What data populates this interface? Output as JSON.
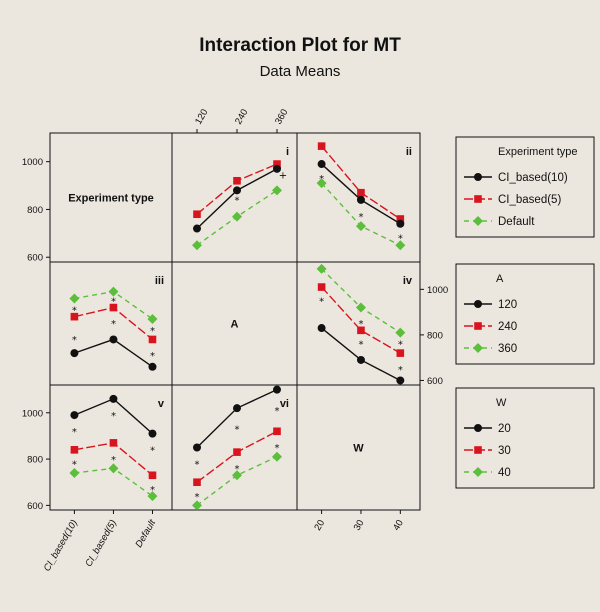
{
  "chart_data": {
    "type": "line",
    "title": "Interaction Plot for MT",
    "subtitle": "Data Means",
    "factors": [
      {
        "name": "Experiment type",
        "levels": [
          "CI_based(10)",
          "CI_based(5)",
          "Default"
        ]
      },
      {
        "name": "A",
        "levels": [
          "120",
          "240",
          "360"
        ]
      },
      {
        "name": "W",
        "levels": [
          "20",
          "30",
          "40"
        ]
      }
    ],
    "ylim": [
      580,
      1120
    ],
    "ytick_values": [
      600,
      800,
      1000
    ],
    "ytick_labels": [
      "600",
      "800",
      "1000"
    ],
    "colors": [
      "#111111",
      "#d9141e",
      "#5cbf3c"
    ],
    "marker_shapes": [
      "circle",
      "square",
      "diamond"
    ],
    "line_styles": [
      "solid",
      "longdash",
      "dash"
    ],
    "panels": [
      {
        "id": "i",
        "row": 0,
        "col": 1,
        "x_factor": "A",
        "trace_factor": "Experiment type",
        "series": [
          {
            "name": "CI_based(10)",
            "values": [
              720,
              880,
              970
            ]
          },
          {
            "name": "CI_based(5)",
            "values": [
              780,
              920,
              990
            ]
          },
          {
            "name": "Default",
            "values": [
              650,
              770,
              880
            ]
          }
        ],
        "stars": [
          [
            1,
            850
          ]
        ],
        "plus": [
          [
            2,
            950
          ]
        ]
      },
      {
        "id": "ii",
        "row": 0,
        "col": 2,
        "x_factor": "W",
        "trace_factor": "Experiment type",
        "series": [
          {
            "name": "CI_based(10)",
            "values": [
              990,
              840,
              740
            ]
          },
          {
            "name": "CI_based(5)",
            "values": [
              1065,
              870,
              760
            ]
          },
          {
            "name": "Default",
            "values": [
              910,
              730,
              650
            ]
          }
        ],
        "stars": [
          [
            0,
            940
          ],
          [
            1,
            780
          ],
          [
            2,
            690
          ]
        ]
      },
      {
        "id": "iii",
        "row": 1,
        "col": 0,
        "x_factor": "Experiment type",
        "trace_factor": "A",
        "series": [
          {
            "name": "120",
            "values": [
              720,
              780,
              660
            ]
          },
          {
            "name": "240",
            "values": [
              880,
              920,
              780
            ]
          },
          {
            "name": "360",
            "values": [
              960,
              990,
              870
            ]
          }
        ],
        "stars": [
          [
            0,
            920
          ],
          [
            0,
            790
          ],
          [
            1,
            960
          ],
          [
            1,
            860
          ],
          [
            2,
            830
          ],
          [
            2,
            720
          ]
        ]
      },
      {
        "id": "iv",
        "row": 1,
        "col": 2,
        "x_factor": "W",
        "trace_factor": "A",
        "series": [
          {
            "name": "120",
            "values": [
              830,
              690,
              600
            ]
          },
          {
            "name": "240",
            "values": [
              1010,
              820,
              720
            ]
          },
          {
            "name": "360",
            "values": [
              1090,
              920,
              810
            ]
          }
        ],
        "stars": [
          [
            0,
            960
          ],
          [
            1,
            860
          ],
          [
            1,
            770
          ],
          [
            2,
            770
          ],
          [
            2,
            660
          ]
        ]
      },
      {
        "id": "v",
        "row": 2,
        "col": 0,
        "x_factor": "Experiment type",
        "trace_factor": "W",
        "series": [
          {
            "name": "20",
            "values": [
              990,
              1060,
              910
            ]
          },
          {
            "name": "30",
            "values": [
              840,
              870,
              730
            ]
          },
          {
            "name": "40",
            "values": [
              740,
              760,
              640
            ]
          }
        ],
        "stars": [
          [
            0,
            930
          ],
          [
            0,
            790
          ],
          [
            1,
            1000
          ],
          [
            1,
            810
          ],
          [
            2,
            850
          ],
          [
            2,
            680
          ]
        ]
      },
      {
        "id": "vi",
        "row": 2,
        "col": 1,
        "x_factor": "A",
        "trace_factor": "W",
        "series": [
          {
            "name": "20",
            "values": [
              850,
              1020,
              1100
            ]
          },
          {
            "name": "30",
            "values": [
              700,
              830,
              920
            ]
          },
          {
            "name": "40",
            "values": [
              600,
              730,
              810
            ]
          }
        ],
        "stars": [
          [
            0,
            790
          ],
          [
            0,
            650
          ],
          [
            1,
            940
          ],
          [
            1,
            770
          ],
          [
            2,
            1020
          ],
          [
            2,
            860
          ]
        ]
      }
    ],
    "legends": [
      {
        "title": "Experiment type",
        "items": [
          "CI_based(10)",
          "CI_based(5)",
          "Default"
        ]
      },
      {
        "title": "A",
        "items": [
          "120",
          "240",
          "360"
        ]
      },
      {
        "title": "W",
        "items": [
          "20",
          "30",
          "40"
        ]
      }
    ]
  }
}
